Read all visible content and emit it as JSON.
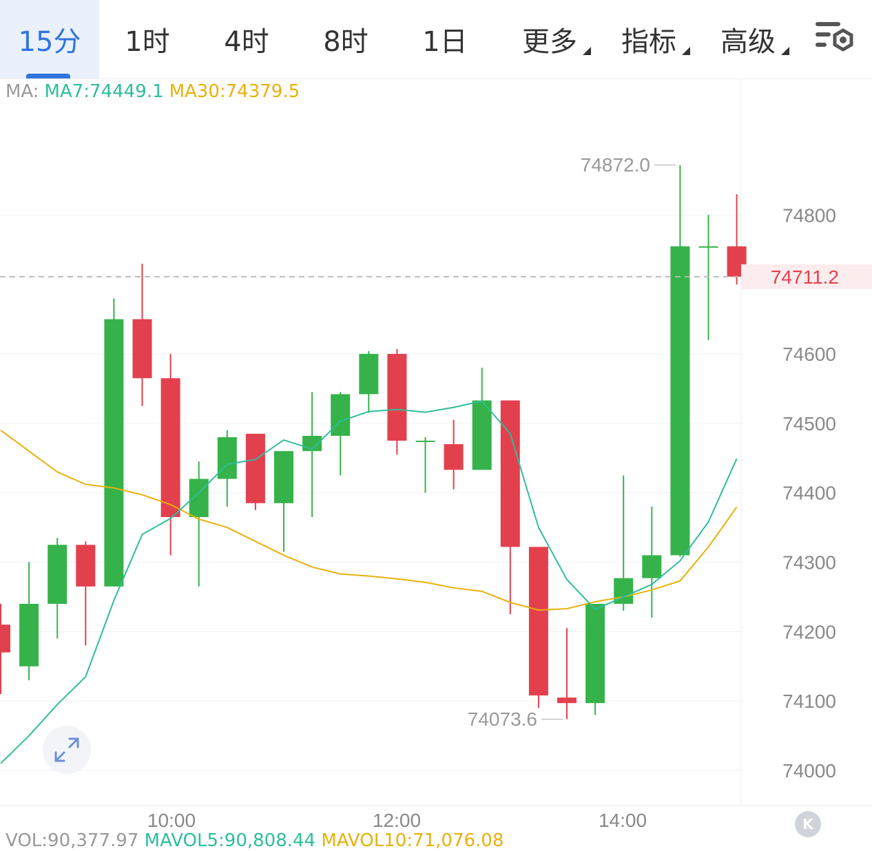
{
  "tabs": [
    {
      "label": "15分",
      "active": true
    },
    {
      "label": "1时",
      "active": false
    },
    {
      "label": "4时",
      "active": false
    },
    {
      "label": "8时",
      "active": false
    },
    {
      "label": "1日",
      "active": false
    },
    {
      "label": "更多",
      "active": false,
      "dropdown": true
    },
    {
      "label": "指标",
      "active": false,
      "dropdown": true
    },
    {
      "label": "高级",
      "active": false,
      "dropdown": true
    }
  ],
  "settings_icon": "chart-settings-icon",
  "ma": {
    "prefix": "MA:",
    "ma7": "MA7:74449.1",
    "ma30": "MA30:74379.5",
    "ma7_color": "#2ebd9b",
    "ma30_color": "#e8b10a"
  },
  "vol_line": {
    "vol": "VOL:90,377.97",
    "mavol5": "MAVOL5:90,808.44",
    "mavol10": "MAVOL10:71,076.08"
  },
  "colors": {
    "up": "#35b34a",
    "down": "#e3404e",
    "grid": "#f0f0f0",
    "axis_text": "#888888",
    "price_tag_bg": "#fdecee",
    "price_tag_text": "#e3404e"
  },
  "chart_data": {
    "type": "candlestick",
    "interval": "15分",
    "yticks": [
      74000,
      74100,
      74200,
      74300,
      74400,
      74500,
      74600,
      74800
    ],
    "ylim": [
      73950,
      74980
    ],
    "xticks": [
      "10:00",
      "12:00",
      "14:00"
    ],
    "last_price": "74711.2",
    "max_label": "74872.0",
    "min_label": "74073.6",
    "candles": [
      {
        "o": 74210,
        "h": 74240,
        "l": 74110,
        "c": 74170
      },
      {
        "o": 74150,
        "h": 74300,
        "l": 74130,
        "c": 74240
      },
      {
        "o": 74240,
        "h": 74335,
        "l": 74190,
        "c": 74325
      },
      {
        "o": 74325,
        "h": 74330,
        "l": 74180,
        "c": 74265
      },
      {
        "o": 74265,
        "h": 74680,
        "l": 74265,
        "c": 74650
      },
      {
        "o": 74650,
        "h": 74730,
        "l": 74525,
        "c": 74565
      },
      {
        "o": 74565,
        "h": 74600,
        "l": 74310,
        "c": 74365
      },
      {
        "o": 74365,
        "h": 74445,
        "l": 74265,
        "c": 74420
      },
      {
        "o": 74420,
        "h": 74490,
        "l": 74380,
        "c": 74480
      },
      {
        "o": 74485,
        "h": 74485,
        "l": 74375,
        "c": 74385
      },
      {
        "o": 74385,
        "h": 74460,
        "l": 74315,
        "c": 74460
      },
      {
        "o": 74460,
        "h": 74545,
        "l": 74365,
        "c": 74482
      },
      {
        "o": 74482,
        "h": 74545,
        "l": 74425,
        "c": 74542
      },
      {
        "o": 74542,
        "h": 74604,
        "l": 74515,
        "c": 74600
      },
      {
        "o": 74600,
        "h": 74607,
        "l": 74455,
        "c": 74475
      },
      {
        "o": 74475,
        "h": 74480,
        "l": 74400,
        "c": 74475
      },
      {
        "o": 74470,
        "h": 74505,
        "l": 74405,
        "c": 74433
      },
      {
        "o": 74433,
        "h": 74580,
        "l": 74433,
        "c": 74533
      },
      {
        "o": 74533,
        "h": 74533,
        "l": 74225,
        "c": 74322
      },
      {
        "o": 74322,
        "h": 74322,
        "l": 74090,
        "c": 74108
      },
      {
        "o": 74105,
        "h": 74205,
        "l": 74074,
        "c": 74097
      },
      {
        "o": 74097,
        "h": 74238,
        "l": 74080,
        "c": 74240
      },
      {
        "o": 74240,
        "h": 74425,
        "l": 74230,
        "c": 74277
      },
      {
        "o": 74277,
        "h": 74380,
        "l": 74220,
        "c": 74310
      },
      {
        "o": 74310,
        "h": 74872,
        "l": 74308,
        "c": 74755
      },
      {
        "o": 74755,
        "h": 74800,
        "l": 74620,
        "c": 74755
      },
      {
        "o": 74755,
        "h": 74830,
        "l": 74700,
        "c": 74711.2
      }
    ],
    "ma7": [
      74010,
      74050,
      74095,
      74135,
      74245,
      74340,
      74363,
      74400,
      74441,
      74448,
      74476,
      74463,
      74503,
      74517,
      74520,
      74516,
      74523,
      74532,
      74485,
      74350,
      74275,
      74232,
      74250,
      74268,
      74302,
      74358,
      74449.1
    ],
    "ma30": [
      74490,
      74460,
      74430,
      74412,
      74407,
      74397,
      74383,
      74362,
      74350,
      74330,
      74310,
      74293,
      74283,
      74280,
      74276,
      74271,
      74263,
      74258,
      74242,
      74231,
      74233,
      74243,
      74250,
      74260,
      74273,
      74322,
      74379.5
    ]
  }
}
